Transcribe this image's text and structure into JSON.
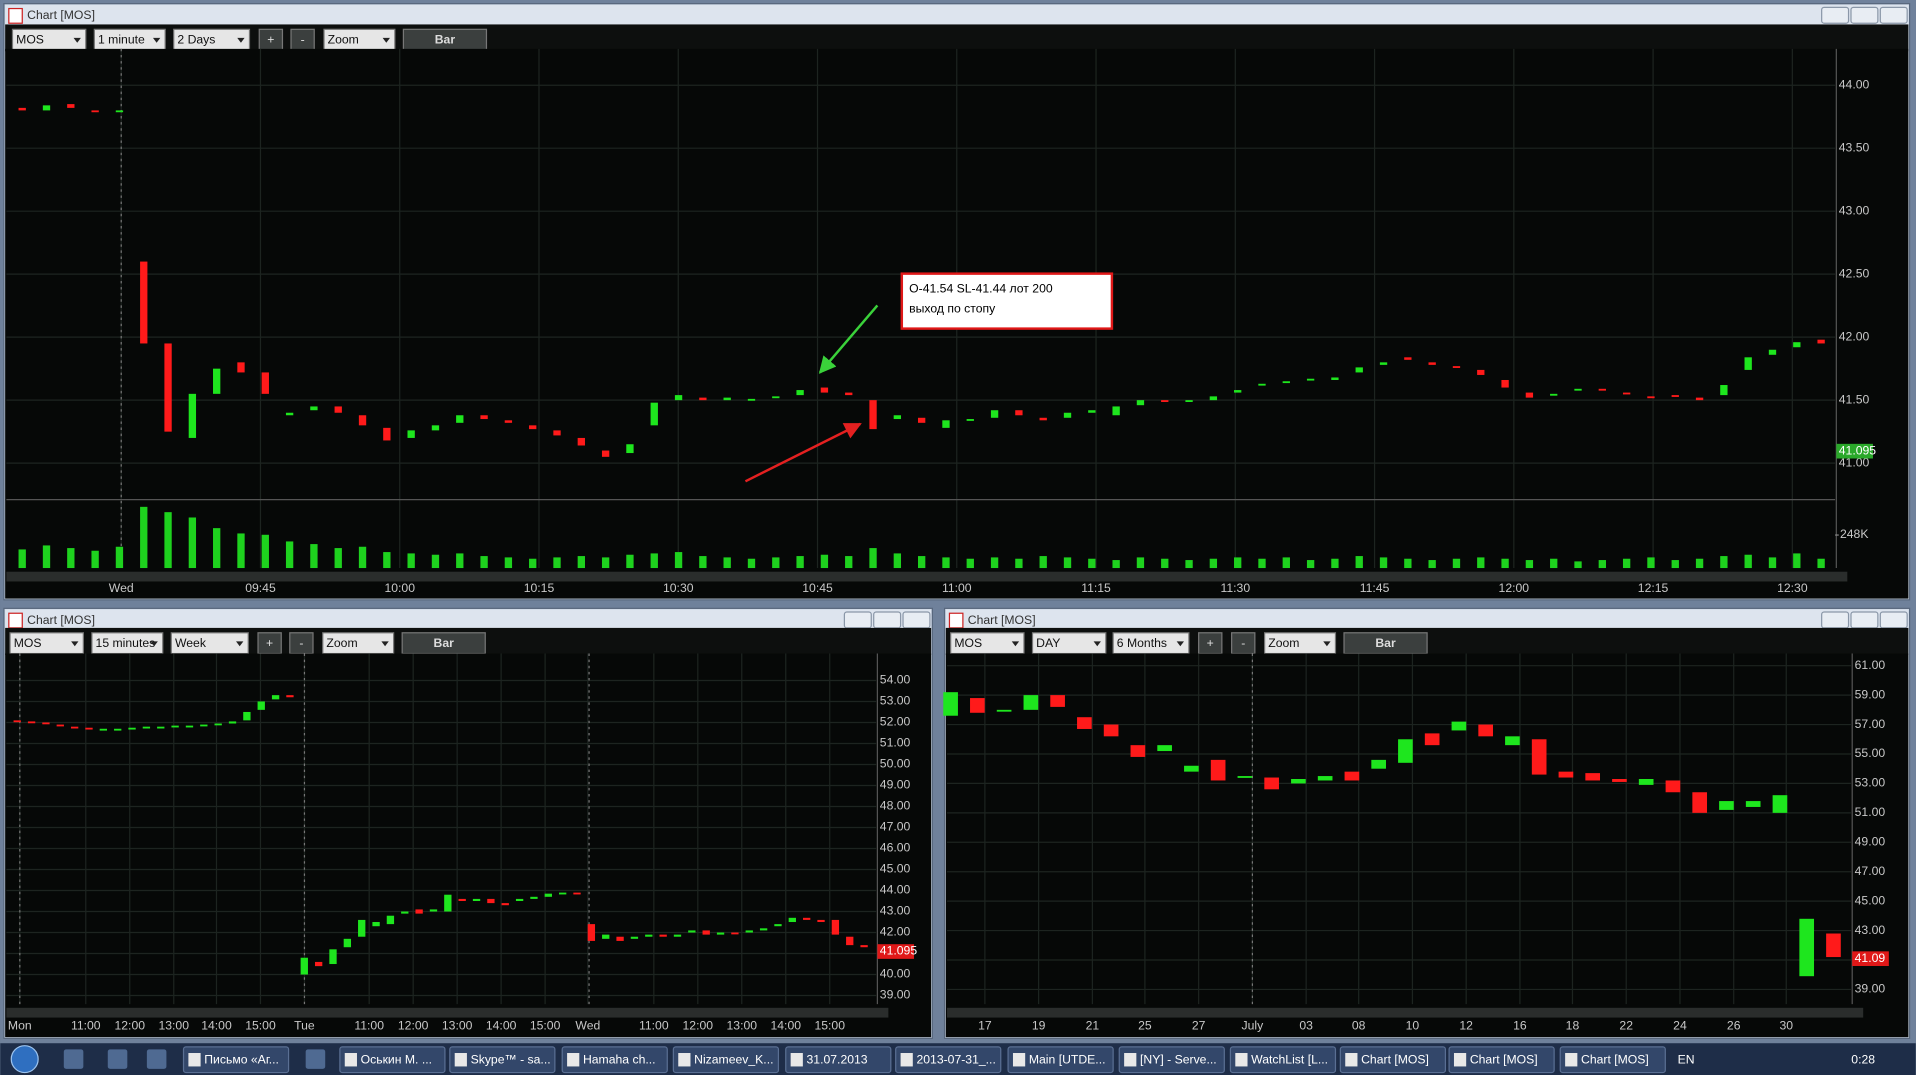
{
  "windows": [
    {
      "title": "Chart [MOS]",
      "toolbar": {
        "symbol": "MOS",
        "interval": "1 minute",
        "range": "2 Days",
        "plus": "+",
        "minus": "-",
        "zoom": "Zoom",
        "bar": "Bar"
      }
    },
    {
      "title": "Chart [MOS]",
      "toolbar": {
        "symbol": "MOS",
        "interval": "15 minutes",
        "range": "Week",
        "plus": "+",
        "minus": "-",
        "zoom": "Zoom",
        "bar": "Bar"
      }
    },
    {
      "title": "Chart [MOS]",
      "toolbar": {
        "symbol": "MOS",
        "interval": "DAY",
        "range": "6 Months",
        "plus": "+",
        "minus": "-",
        "zoom": "Zoom",
        "bar": "Bar"
      }
    }
  ],
  "chart_data": [
    {
      "type": "candlestick",
      "grid": true,
      "up_color": "#1ee61e",
      "down_color": "#ff1a1a",
      "volume_color": "#1ed21e",
      "last_price_color": "#2aa82a",
      "ylim": [
        40.72,
        44.24
      ],
      "yticks": [
        {
          "value": 44,
          "label": "44.00"
        },
        {
          "value": 43.5,
          "label": "43.50"
        },
        {
          "value": 43,
          "label": "43.00"
        },
        {
          "value": 42.5,
          "label": "42.50"
        },
        {
          "value": 42,
          "label": "42.00"
        },
        {
          "value": 41.5,
          "label": "41.50"
        },
        {
          "value": 41,
          "label": "41.00"
        }
      ],
      "x_labels": [
        "Wed",
        "09:45",
        "10:00",
        "10:15",
        "10:30",
        "10:45",
        "11:00",
        "11:15",
        "11:30",
        "11:45",
        "12:00",
        "12:15",
        "12:30"
      ],
      "open": [
        43.82,
        43.8,
        43.85,
        43.8,
        43.79,
        42.6,
        41.95,
        41.2,
        41.55,
        41.8,
        41.72,
        41.38,
        41.42,
        41.45,
        41.38,
        41.28,
        41.2,
        41.26,
        41.32,
        41.38,
        41.34,
        41.3,
        41.26,
        41.2,
        41.1,
        41.08,
        41.3,
        41.5,
        41.52,
        41.5,
        41.5,
        41.52,
        41.54,
        41.6,
        41.56,
        41.5,
        41.35,
        41.36,
        41.28,
        41.34,
        41.36,
        41.42,
        41.36,
        41.36,
        41.4,
        41.38,
        41.46,
        41.5,
        41.49,
        41.5,
        41.56,
        41.62,
        41.64,
        41.66,
        41.66,
        41.72,
        41.78,
        41.84,
        41.8,
        41.77,
        41.74,
        41.66,
        41.56,
        41.54,
        41.58,
        41.59,
        41.56,
        41.53,
        41.54,
        41.52,
        41.54,
        41.74,
        41.86,
        41.92,
        41.98
      ],
      "close": [
        43.8,
        43.84,
        43.82,
        43.79,
        43.8,
        41.95,
        41.25,
        41.55,
        41.75,
        41.72,
        41.55,
        41.4,
        41.45,
        41.4,
        41.3,
        41.18,
        41.26,
        41.3,
        41.38,
        41.35,
        41.32,
        41.27,
        41.22,
        41.14,
        41.05,
        41.15,
        41.48,
        41.54,
        41.5,
        41.52,
        41.51,
        41.53,
        41.58,
        41.56,
        41.54,
        41.27,
        41.38,
        41.32,
        41.34,
        41.35,
        41.42,
        41.38,
        41.34,
        41.4,
        41.42,
        41.45,
        41.5,
        41.49,
        41.5,
        41.53,
        41.58,
        41.63,
        41.65,
        41.67,
        41.68,
        41.76,
        41.8,
        41.82,
        41.78,
        41.76,
        41.7,
        41.6,
        41.52,
        41.55,
        41.59,
        41.58,
        41.55,
        41.52,
        41.53,
        41.5,
        41.62,
        41.84,
        41.9,
        41.96,
        41.95
      ],
      "volume": [
        140,
        170,
        150,
        130,
        160,
        460,
        420,
        380,
        300,
        260,
        250,
        200,
        180,
        150,
        160,
        120,
        110,
        100,
        110,
        90,
        80,
        70,
        80,
        90,
        80,
        100,
        110,
        120,
        90,
        80,
        70,
        80,
        90,
        100,
        90,
        150,
        110,
        90,
        80,
        70,
        80,
        70,
        90,
        80,
        70,
        60,
        80,
        70,
        60,
        70,
        80,
        70,
        80,
        60,
        70,
        90,
        80,
        70,
        60,
        70,
        80,
        70,
        60,
        70,
        50,
        60,
        70,
        80,
        60,
        70,
        90,
        100,
        80,
        110,
        70
      ],
      "vlim": [
        0,
        505
      ],
      "vticks": [
        {
          "value": 248,
          "label": "248K"
        }
      ],
      "last_price": 41.095,
      "annotation": [
        "O-41.54 SL-41.44 лот 200",
        "выход по стопу"
      ]
    },
    {
      "type": "candlestick",
      "grid": true,
      "up_color": "#1ee61e",
      "down_color": "#ff1a1a",
      "last_price_color": "#e01818",
      "ylim": [
        38.59,
        54.99
      ],
      "yticks": [
        {
          "value": 54,
          "label": "54.00"
        },
        {
          "value": 53,
          "label": "53.00"
        },
        {
          "value": 52,
          "label": "52.00"
        },
        {
          "value": 51,
          "label": "51.00"
        },
        {
          "value": 50,
          "label": "50.00"
        },
        {
          "value": 49,
          "label": "49.00"
        },
        {
          "value": 48,
          "label": "48.00"
        },
        {
          "value": 47,
          "label": "47.00"
        },
        {
          "value": 46,
          "label": "46.00"
        },
        {
          "value": 45,
          "label": "45.00"
        },
        {
          "value": 44,
          "label": "44.00"
        },
        {
          "value": 43,
          "label": "43.00"
        },
        {
          "value": 42,
          "label": "42.00"
        },
        {
          "value": 41,
          "label": "41.00"
        },
        {
          "value": 40,
          "label": "40.00"
        },
        {
          "value": 39,
          "label": "39.00"
        }
      ],
      "x_labels": [
        "Mon",
        "11:00",
        "12:00",
        "13:00",
        "14:00",
        "15:00",
        "Tue",
        "11:00",
        "12:00",
        "13:00",
        "14:00",
        "15:00",
        "Wed",
        "11:00",
        "12:00",
        "13:00",
        "14:00",
        "15:00"
      ],
      "open": [
        52.1,
        52.05,
        52.0,
        51.9,
        51.8,
        51.75,
        51.7,
        51.65,
        51.7,
        51.75,
        51.8,
        51.8,
        51.82,
        51.85,
        51.9,
        51.95,
        52.1,
        52.6,
        53.1,
        53.3,
        40.0,
        40.6,
        40.5,
        41.3,
        41.8,
        42.3,
        42.4,
        42.9,
        43.1,
        43.0,
        43.0,
        43.6,
        43.5,
        43.6,
        43.4,
        43.5,
        43.6,
        43.7,
        43.85,
        43.9,
        42.4,
        41.7,
        41.8,
        41.7,
        41.8,
        41.9,
        41.8,
        42.0,
        42.1,
        41.9,
        42.0,
        42.0,
        42.1,
        42.3,
        42.5,
        42.7,
        42.6,
        42.6,
        41.8,
        41.4
      ],
      "close": [
        52.05,
        52.0,
        51.95,
        51.85,
        51.75,
        51.7,
        51.7,
        51.7,
        51.75,
        51.8,
        51.8,
        51.85,
        51.85,
        51.9,
        51.95,
        52.05,
        52.5,
        53.0,
        53.3,
        53.2,
        40.8,
        40.4,
        41.2,
        41.7,
        42.6,
        42.5,
        42.8,
        43.0,
        42.9,
        43.1,
        43.8,
        43.5,
        43.6,
        43.4,
        43.3,
        43.6,
        43.7,
        43.85,
        43.9,
        43.85,
        41.6,
        41.9,
        41.6,
        41.8,
        41.9,
        41.8,
        41.9,
        42.1,
        41.9,
        42.0,
        41.95,
        42.1,
        42.2,
        42.4,
        42.7,
        42.6,
        42.5,
        41.9,
        41.4,
        41.3
      ],
      "last_price": 41.095
    },
    {
      "type": "candlestick",
      "grid": true,
      "up_color": "#1ee61e",
      "down_color": "#ff1a1a",
      "last_price_color": "#e01818",
      "ylim": [
        38.0,
        61.41
      ],
      "yticks": [
        {
          "value": 61,
          "label": "61.00"
        },
        {
          "value": 59,
          "label": "59.00"
        },
        {
          "value": 57,
          "label": "57.00"
        },
        {
          "value": 55,
          "label": "55.00"
        },
        {
          "value": 53,
          "label": "53.00"
        },
        {
          "value": 51,
          "label": "51.00"
        },
        {
          "value": 49,
          "label": "49.00"
        },
        {
          "value": 47,
          "label": "47.00"
        },
        {
          "value": 45,
          "label": "45.00"
        },
        {
          "value": 43,
          "label": "43.00"
        },
        {
          "value": 41,
          "label": "41.00"
        },
        {
          "value": 39,
          "label": "39.00"
        }
      ],
      "x_labels": [
        "17",
        "19",
        "21",
        "25",
        "27",
        "July",
        "03",
        "08",
        "10",
        "12",
        "16",
        "18",
        "22",
        "24",
        "26",
        "30"
      ],
      "open": [
        57.6,
        58.8,
        58.0,
        58.0,
        59.0,
        57.5,
        57.0,
        55.6,
        55.2,
        53.8,
        54.6,
        53.4,
        53.4,
        53.0,
        53.2,
        53.8,
        54.0,
        54.4,
        56.4,
        56.6,
        57.0,
        55.6,
        56.0,
        53.8,
        53.7,
        53.3,
        52.9,
        53.2,
        52.4,
        51.2,
        51.4,
        51.0,
        39.9,
        42.8
      ],
      "close": [
        59.2,
        57.8,
        58.0,
        59.0,
        58.2,
        56.7,
        56.2,
        54.8,
        55.6,
        54.2,
        53.2,
        53.5,
        52.6,
        53.3,
        53.5,
        53.2,
        54.6,
        56.0,
        55.6,
        57.2,
        56.2,
        56.2,
        53.6,
        53.4,
        53.2,
        53.1,
        53.3,
        52.4,
        51.0,
        51.8,
        51.8,
        52.2,
        43.8,
        41.2
      ],
      "last_price": 41.09
    }
  ],
  "taskbar": {
    "items": [
      "Письмо «Аг...",
      "Оськин М. ...",
      "Skype™ - sa...",
      "Hamaha ch...",
      "Nizameev_K...",
      "31.07.2013",
      "2013-07-31_...",
      "Main [UTDE...",
      "[NY] - Serve...",
      "WatchList [L...",
      "Chart [MOS]",
      "Chart [MOS]",
      "Chart [MOS]"
    ],
    "language": "EN",
    "clock": "0:28"
  }
}
